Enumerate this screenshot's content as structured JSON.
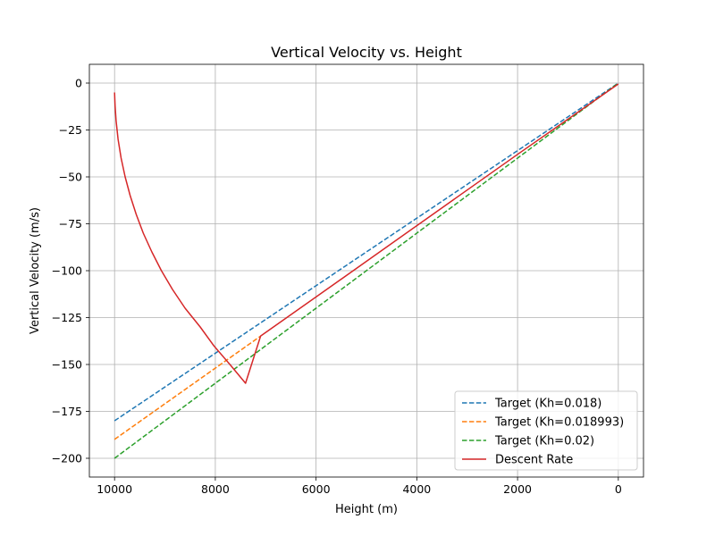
{
  "chart_data": {
    "type": "line",
    "title": "Vertical Velocity vs. Height",
    "xlabel": "Height (m)",
    "ylabel": "Vertical Velocity (m/s)",
    "xlim": [
      10500,
      -500
    ],
    "ylim": [
      -210,
      10
    ],
    "x_inverted": true,
    "xticks": [
      10000,
      8000,
      6000,
      4000,
      2000,
      0
    ],
    "xtick_labels": [
      "10000",
      "8000",
      "6000",
      "4000",
      "2000",
      "0"
    ],
    "yticks": [
      0,
      -25,
      -50,
      -75,
      -100,
      -125,
      -150,
      -175,
      -200
    ],
    "ytick_labels": [
      "0",
      "−25",
      "−50",
      "−75",
      "−100",
      "−125",
      "−150",
      "−175",
      "−200"
    ],
    "grid": true,
    "legend_position": "lower right",
    "series": [
      {
        "name": "Target (Kh=0.018)",
        "color": "#1f77b4",
        "style": "dashed",
        "points": [
          [
            10000,
            -180
          ],
          [
            0,
            0
          ]
        ]
      },
      {
        "name": "Target (Kh=0.018993)",
        "color": "#ff7f0e",
        "style": "dashed",
        "points": [
          [
            10000,
            -189.93
          ],
          [
            7100,
            -134.85
          ]
        ]
      },
      {
        "name": "Target (Kh=0.02)",
        "color": "#2ca02c",
        "style": "dashed",
        "points": [
          [
            10000,
            -200
          ],
          [
            0,
            0
          ]
        ]
      },
      {
        "name": "Descent Rate",
        "color": "#d62728",
        "style": "solid",
        "points": [
          [
            10000,
            -5
          ],
          [
            9990,
            -12
          ],
          [
            9970,
            -20
          ],
          [
            9930,
            -30
          ],
          [
            9870,
            -40
          ],
          [
            9790,
            -50
          ],
          [
            9690,
            -60
          ],
          [
            9570,
            -70
          ],
          [
            9430,
            -80
          ],
          [
            9260,
            -90
          ],
          [
            9070,
            -100
          ],
          [
            8850,
            -110
          ],
          [
            8600,
            -120
          ],
          [
            8300,
            -130
          ],
          [
            8030,
            -140
          ],
          [
            7710,
            -150
          ],
          [
            7400,
            -160
          ],
          [
            7100,
            -134.8
          ],
          [
            6000,
            -114
          ],
          [
            4000,
            -76
          ],
          [
            2000,
            -38
          ],
          [
            0,
            -0.5
          ]
        ]
      }
    ]
  }
}
